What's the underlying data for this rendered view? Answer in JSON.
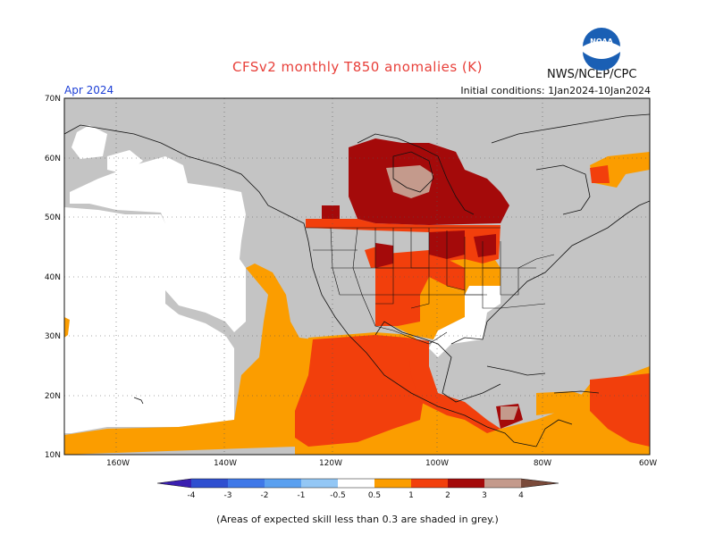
{
  "header": {
    "title": "CFSv2 monthly T850 anomalies (K)",
    "agency": "NWS/NCEP/CPC",
    "month": "Apr 2024",
    "initial_conditions": "Initial conditions: 1Jan2024-10Jan2024"
  },
  "logo": {
    "text": "NOAA"
  },
  "axes": {
    "lat_labels": [
      "70N",
      "60N",
      "50N",
      "40N",
      "30N",
      "20N",
      "10N"
    ],
    "lon_labels": [
      "160W",
      "140W",
      "120W",
      "100W",
      "80W",
      "60W"
    ]
  },
  "colorbar": {
    "labels": [
      "-4",
      "-3",
      "-2",
      "-1",
      "-0.5",
      "0.5",
      "1",
      "2",
      "3",
      "4"
    ],
    "colors": [
      "#3a1fb0",
      "#2f4fd0",
      "#3f78e8",
      "#5aa0f0",
      "#93c7f5",
      "#ffffff",
      "#fb9d00",
      "#f23f0c",
      "#a40a0a",
      "#c49a8c",
      "#7a4a3a"
    ]
  },
  "footnote": "(Areas of expected skill less than 0.3 are shaded in grey.)",
  "legend_colors": {
    "grey": "#c4c4c4",
    "white": "#ffffff",
    "orange": "#fb9d00",
    "red": "#f23f0c",
    "darkred": "#a40a0a",
    "pink": "#c49a8c"
  }
}
